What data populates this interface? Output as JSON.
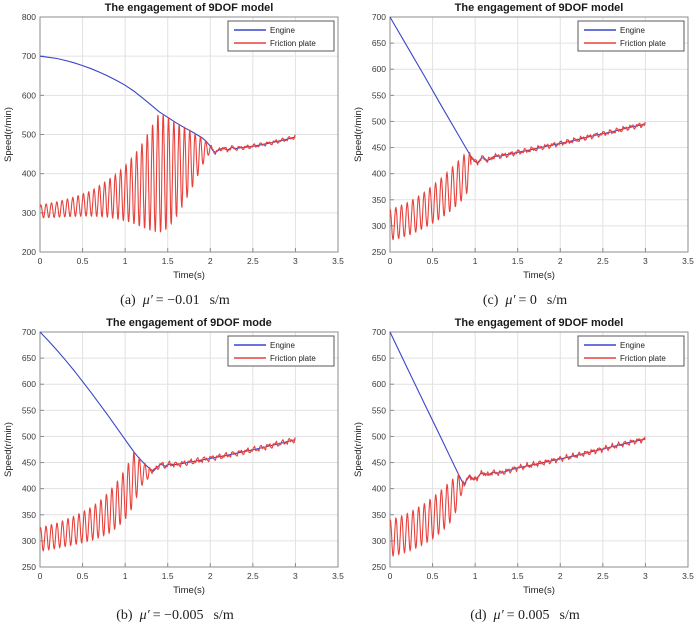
{
  "colors": {
    "engine": "#3a46c8",
    "friction": "#e8413c",
    "grid": "#e2e2e2",
    "axis_box": "#8c8c8c",
    "tick_text": "#3a3a3a",
    "label_text": "#222222",
    "title_text": "#1a1a1a",
    "legend_border": "#5a5a5a",
    "background": "#ffffff"
  },
  "chart_data": [
    {
      "type": "line",
      "position": "top-left",
      "title": "The engagement of 9DOF model",
      "xlabel": "Time(s)",
      "ylabel": "Speed(r/min)",
      "xlim": [
        0,
        3.5
      ],
      "ylim": [
        200,
        800
      ],
      "xticks": [
        0,
        0.5,
        1,
        1.5,
        2,
        2.5,
        3,
        3.5
      ],
      "yticks": [
        200,
        300,
        400,
        500,
        600,
        700,
        800
      ],
      "grid": true,
      "legend_position": "top-right",
      "legend": [
        {
          "name": "Engine",
          "color_key": "engine"
        },
        {
          "name": "Friction plate",
          "color_key": "friction"
        }
      ],
      "series": {
        "engine_points": [
          [
            0,
            700
          ],
          [
            0.1,
            697
          ],
          [
            0.2,
            694
          ],
          [
            0.3,
            689
          ],
          [
            0.4,
            683
          ],
          [
            0.5,
            676
          ],
          [
            0.6,
            668
          ],
          [
            0.7,
            659
          ],
          [
            0.8,
            649
          ],
          [
            0.9,
            638
          ],
          [
            1.0,
            626
          ],
          [
            1.1,
            611
          ],
          [
            1.2,
            594
          ],
          [
            1.3,
            576
          ],
          [
            1.4,
            558
          ],
          [
            1.5,
            544
          ],
          [
            1.6,
            530
          ],
          [
            1.7,
            517
          ],
          [
            1.8,
            505
          ],
          [
            1.9,
            492
          ],
          [
            1.95,
            483
          ],
          [
            2.0,
            470
          ],
          [
            2.03,
            459
          ],
          [
            2.06,
            454
          ],
          [
            2.1,
            460
          ],
          [
            2.15,
            466
          ],
          [
            2.2,
            460
          ],
          [
            2.25,
            467
          ],
          [
            2.3,
            464
          ],
          [
            2.35,
            466
          ],
          [
            2.4,
            467
          ],
          [
            2.5,
            470
          ],
          [
            2.6,
            474
          ],
          [
            2.7,
            478
          ],
          [
            2.8,
            483
          ],
          [
            2.9,
            488
          ],
          [
            3.0,
            494
          ]
        ],
        "friction": {
          "oscillation_freq_hz": 16,
          "phase_rad": 0.6,
          "envelope_t_min_max": [
            [
              0,
              287,
              320
            ],
            [
              0.2,
              289,
              328
            ],
            [
              0.4,
              291,
              340
            ],
            [
              0.6,
              292,
              356
            ],
            [
              0.8,
              289,
              384
            ],
            [
              0.9,
              285,
              400
            ],
            [
              1.0,
              280,
              420
            ],
            [
              1.1,
              272,
              446
            ],
            [
              1.2,
              263,
              478
            ],
            [
              1.3,
              254,
              516
            ],
            [
              1.4,
              249,
              556
            ],
            [
              1.45,
              252,
              551
            ],
            [
              1.5,
              260,
              544
            ],
            [
              1.6,
              290,
              530
            ],
            [
              1.7,
              327,
              517
            ],
            [
              1.8,
              370,
              505
            ],
            [
              1.9,
              418,
              492
            ],
            [
              1.95,
              440,
              483
            ],
            [
              2.02,
              458,
              470
            ]
          ],
          "sync_time_s": 2.02,
          "end_time_s": 3.0,
          "noise": {
            "amps": [
              3.5,
              2.2,
              1.2
            ],
            "freqs_hz": [
              12,
              27,
              51
            ],
            "phases": [
              0.8,
              2.1,
              4.0
            ]
          }
        }
      },
      "caption": {
        "label": "(a)",
        "mu": "μ′",
        "rhs": "= −0.01",
        "unit": "s/m"
      }
    },
    {
      "type": "line",
      "position": "top-right",
      "title": "The engagement of 9DOF model",
      "xlabel": "Time(s)",
      "ylabel": "Speed(r/min)",
      "xlim": [
        0,
        3.5
      ],
      "ylim": [
        250,
        700
      ],
      "xticks": [
        0,
        0.5,
        1,
        1.5,
        2,
        2.5,
        3,
        3.5
      ],
      "yticks": [
        250,
        300,
        350,
        400,
        450,
        500,
        550,
        600,
        650,
        700
      ],
      "grid": true,
      "legend_position": "top-right",
      "legend": [
        {
          "name": "Engine",
          "color_key": "engine"
        },
        {
          "name": "Friction plate",
          "color_key": "friction"
        }
      ],
      "series": {
        "engine_points": [
          [
            0,
            700
          ],
          [
            0.2,
            644
          ],
          [
            0.4,
            588
          ],
          [
            0.6,
            531
          ],
          [
            0.8,
            475
          ],
          [
            0.9,
            447
          ],
          [
            0.95,
            433
          ],
          [
            1.0,
            423
          ],
          [
            1.03,
            421
          ],
          [
            1.07,
            429
          ],
          [
            1.1,
            431
          ],
          [
            1.14,
            425
          ],
          [
            1.18,
            428
          ],
          [
            1.22,
            433
          ],
          [
            1.3,
            434
          ],
          [
            1.4,
            437
          ],
          [
            1.5,
            441
          ],
          [
            1.6,
            444
          ],
          [
            1.8,
            451
          ],
          [
            2.0,
            458
          ],
          [
            2.2,
            465
          ],
          [
            2.4,
            473
          ],
          [
            2.6,
            480
          ],
          [
            2.8,
            488
          ],
          [
            3.0,
            495
          ]
        ],
        "friction": {
          "oscillation_freq_hz": 15,
          "phase_rad": 1.4,
          "envelope_t_min_max": [
            [
              0,
              273,
              331
            ],
            [
              0.1,
              276,
              337
            ],
            [
              0.2,
              281,
              344
            ],
            [
              0.3,
              288,
              353
            ],
            [
              0.4,
              296,
              364
            ],
            [
              0.5,
              305,
              377
            ],
            [
              0.6,
              315,
              391
            ],
            [
              0.7,
              327,
              407
            ],
            [
              0.8,
              341,
              424
            ],
            [
              0.85,
              350,
              433
            ],
            [
              0.9,
              362,
              441
            ],
            [
              0.95,
              385,
              440
            ]
          ],
          "sync_time_s": 0.95,
          "end_time_s": 3.0,
          "noise": {
            "amps": [
              3.0,
              2.0,
              1.3
            ],
            "freqs_hz": [
              12,
              26,
              50
            ],
            "phases": [
              1.5,
              0.3,
              2.8
            ]
          }
        }
      },
      "caption": {
        "label": "(c)",
        "mu": "μ′",
        "rhs": "= 0",
        "unit": "s/m"
      }
    },
    {
      "type": "line",
      "position": "bottom-left",
      "title": "The engagement of 9DOF mode",
      "xlabel": "Time(s)",
      "ylabel": "Speed(r/min)",
      "xlim": [
        0,
        3.5
      ],
      "ylim": [
        250,
        700
      ],
      "xticks": [
        0,
        0.5,
        1,
        1.5,
        2,
        2.5,
        3,
        3.5
      ],
      "yticks": [
        250,
        300,
        350,
        400,
        450,
        500,
        550,
        600,
        650,
        700
      ],
      "grid": true,
      "legend_position": "top-right",
      "legend": [
        {
          "name": "Engine",
          "color_key": "engine"
        },
        {
          "name": "Friction plate",
          "color_key": "friction"
        }
      ],
      "series": {
        "engine_points": [
          [
            0,
            700
          ],
          [
            0.1,
            683
          ],
          [
            0.2,
            665
          ],
          [
            0.3,
            646
          ],
          [
            0.4,
            626
          ],
          [
            0.5,
            605
          ],
          [
            0.6,
            584
          ],
          [
            0.7,
            562
          ],
          [
            0.8,
            540
          ],
          [
            0.9,
            517
          ],
          [
            1.0,
            494
          ],
          [
            1.1,
            471
          ],
          [
            1.15,
            461
          ],
          [
            1.2,
            452
          ],
          [
            1.25,
            444
          ],
          [
            1.3,
            437
          ],
          [
            1.33,
            433
          ],
          [
            1.37,
            440
          ],
          [
            1.42,
            447
          ],
          [
            1.47,
            443
          ],
          [
            1.52,
            447
          ],
          [
            1.6,
            446
          ],
          [
            1.7,
            449
          ],
          [
            1.8,
            452
          ],
          [
            1.9,
            455
          ],
          [
            2.0,
            458
          ],
          [
            2.2,
            464
          ],
          [
            2.4,
            471
          ],
          [
            2.6,
            478
          ],
          [
            2.8,
            486
          ],
          [
            3.0,
            494
          ]
        ],
        "friction": {
          "oscillation_freq_hz": 15.5,
          "phase_rad": 1.0,
          "envelope_t_min_max": [
            [
              0,
              280,
              325
            ],
            [
              0.2,
              286,
              334
            ],
            [
              0.4,
              293,
              347
            ],
            [
              0.6,
              301,
              364
            ],
            [
              0.7,
              307,
              376
            ],
            [
              0.8,
              314,
              392
            ],
            [
              0.9,
              324,
              412
            ],
            [
              1.0,
              341,
              437
            ],
            [
              1.05,
              353,
              452
            ],
            [
              1.1,
              368,
              470
            ],
            [
              1.15,
              391,
              462
            ],
            [
              1.2,
              407,
              452
            ],
            [
              1.28,
              421,
              443
            ]
          ],
          "sync_time_s": 1.28,
          "end_time_s": 3.0,
          "noise": {
            "amps": [
              3.5,
              2.2,
              1.2
            ],
            "freqs_hz": [
              12,
              27,
              51
            ],
            "phases": [
              0.5,
              1.9,
              3.6
            ]
          }
        }
      },
      "caption": {
        "label": "(b)",
        "mu": "μ′",
        "rhs": "= −0.005",
        "unit": "s/m"
      }
    },
    {
      "type": "line",
      "position": "bottom-right",
      "title": "The engagement of 9DOF model",
      "xlabel": "Time(s)",
      "ylabel": "Speed(r/min)",
      "xlim": [
        0,
        3.5
      ],
      "ylim": [
        250,
        700
      ],
      "xticks": [
        0,
        0.5,
        1,
        1.5,
        2,
        2.5,
        3,
        3.5
      ],
      "yticks": [
        250,
        300,
        350,
        400,
        450,
        500,
        550,
        600,
        650,
        700
      ],
      "grid": true,
      "legend_position": "top-right",
      "legend": [
        {
          "name": "Engine",
          "color_key": "engine"
        },
        {
          "name": "Friction plate",
          "color_key": "friction"
        }
      ],
      "series": {
        "engine_points": [
          [
            0,
            700
          ],
          [
            0.2,
            632
          ],
          [
            0.4,
            564
          ],
          [
            0.6,
            497
          ],
          [
            0.7,
            463
          ],
          [
            0.8,
            429
          ],
          [
            0.84,
            416
          ],
          [
            0.87,
            409
          ],
          [
            0.9,
            416
          ],
          [
            0.94,
            425
          ],
          [
            0.98,
            417
          ],
          [
            1.02,
            420
          ],
          [
            1.06,
            428
          ],
          [
            1.1,
            430
          ],
          [
            1.15,
            426
          ],
          [
            1.2,
            431
          ],
          [
            1.3,
            430
          ],
          [
            1.4,
            435
          ],
          [
            1.5,
            440
          ],
          [
            1.6,
            443
          ],
          [
            1.8,
            450
          ],
          [
            2.0,
            457
          ],
          [
            2.2,
            464
          ],
          [
            2.4,
            472
          ],
          [
            2.6,
            480
          ],
          [
            2.8,
            488
          ],
          [
            3.0,
            495
          ]
        ],
        "friction": {
          "oscillation_freq_hz": 15,
          "phase_rad": 1.25,
          "envelope_t_min_max": [
            [
              0,
              270,
              340
            ],
            [
              0.1,
              274,
              345
            ],
            [
              0.2,
              279,
              352
            ],
            [
              0.3,
              286,
              361
            ],
            [
              0.4,
              294,
              371
            ],
            [
              0.5,
              304,
              383
            ],
            [
              0.6,
              317,
              397
            ],
            [
              0.7,
              334,
              413
            ],
            [
              0.75,
              346,
              420
            ],
            [
              0.8,
              368,
              427
            ],
            [
              0.85,
              395,
              422
            ]
          ],
          "sync_time_s": 0.85,
          "end_time_s": 3.0,
          "noise": {
            "amps": [
              3.2,
              2.0,
              1.2
            ],
            "freqs_hz": [
              13,
              28,
              52
            ],
            "phases": [
              2.2,
              0.9,
              3.1
            ]
          }
        }
      },
      "caption": {
        "label": "(d)",
        "mu": "μ′",
        "rhs": "= 0.005",
        "unit": "s/m"
      }
    }
  ]
}
